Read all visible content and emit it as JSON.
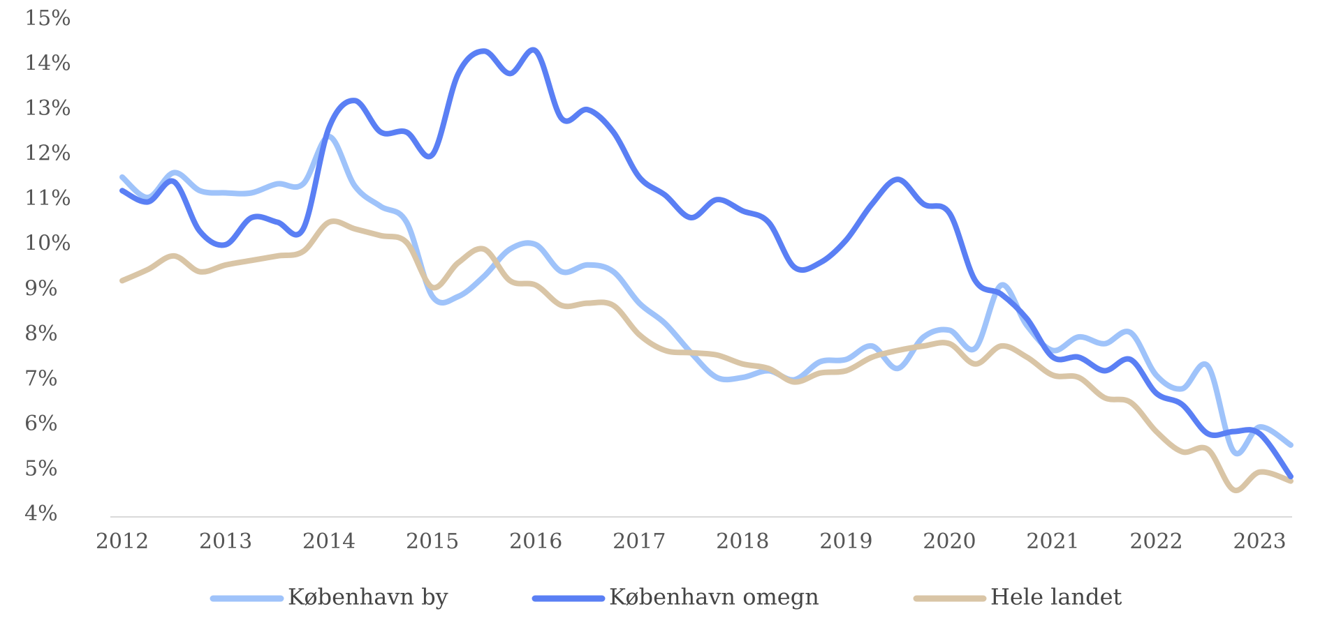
{
  "chart_data": {
    "type": "line",
    "title": "",
    "xlabel": "",
    "ylabel": "",
    "x_tick_labels": [
      "2012",
      "2013",
      "2014",
      "2015",
      "2016",
      "2017",
      "2018",
      "2019",
      "2020",
      "2021",
      "2022",
      "2023"
    ],
    "y_tick_labels": [
      "4%",
      "5%",
      "6%",
      "7%",
      "8%",
      "9%",
      "10%",
      "11%",
      "12%",
      "13%",
      "14%",
      "15%"
    ],
    "xlim": [
      2012,
      2023.3
    ],
    "ylim": [
      4,
      15
    ],
    "y_unit": "%",
    "grid": false,
    "legend_position": "bottom",
    "series": [
      {
        "name": "København by",
        "color": "#9fc3fa",
        "points": [
          [
            2012.0,
            11.5
          ],
          [
            2012.25,
            11.05
          ],
          [
            2012.5,
            11.6
          ],
          [
            2012.75,
            11.2
          ],
          [
            2013.0,
            11.15
          ],
          [
            2013.25,
            11.15
          ],
          [
            2013.5,
            11.35
          ],
          [
            2013.75,
            11.35
          ],
          [
            2014.0,
            12.4
          ],
          [
            2014.25,
            11.3
          ],
          [
            2014.5,
            10.85
          ],
          [
            2014.75,
            10.5
          ],
          [
            2015.0,
            8.85
          ],
          [
            2015.25,
            8.85
          ],
          [
            2015.5,
            9.3
          ],
          [
            2015.75,
            9.9
          ],
          [
            2016.0,
            10.0
          ],
          [
            2016.25,
            9.4
          ],
          [
            2016.5,
            9.55
          ],
          [
            2016.75,
            9.4
          ],
          [
            2017.0,
            8.7
          ],
          [
            2017.25,
            8.25
          ],
          [
            2017.5,
            7.6
          ],
          [
            2017.75,
            7.05
          ],
          [
            2018.0,
            7.05
          ],
          [
            2018.25,
            7.2
          ],
          [
            2018.5,
            7.0
          ],
          [
            2018.75,
            7.4
          ],
          [
            2019.0,
            7.45
          ],
          [
            2019.25,
            7.75
          ],
          [
            2019.5,
            7.25
          ],
          [
            2019.75,
            7.95
          ],
          [
            2020.0,
            8.1
          ],
          [
            2020.25,
            7.7
          ],
          [
            2020.5,
            9.1
          ],
          [
            2020.75,
            8.2
          ],
          [
            2021.0,
            7.65
          ],
          [
            2021.25,
            7.95
          ],
          [
            2021.5,
            7.8
          ],
          [
            2021.75,
            8.05
          ],
          [
            2022.0,
            7.1
          ],
          [
            2022.25,
            6.8
          ],
          [
            2022.5,
            7.3
          ],
          [
            2022.75,
            5.4
          ],
          [
            2023.0,
            5.95
          ],
          [
            2023.3,
            5.55
          ]
        ]
      },
      {
        "name": "København omegn",
        "color": "#5a7ff4",
        "points": [
          [
            2012.0,
            11.2
          ],
          [
            2012.25,
            10.95
          ],
          [
            2012.5,
            11.4
          ],
          [
            2012.75,
            10.3
          ],
          [
            2013.0,
            10.0
          ],
          [
            2013.25,
            10.6
          ],
          [
            2013.5,
            10.5
          ],
          [
            2013.75,
            10.35
          ],
          [
            2014.0,
            12.6
          ],
          [
            2014.25,
            13.2
          ],
          [
            2014.5,
            12.5
          ],
          [
            2014.75,
            12.5
          ],
          [
            2015.0,
            12.0
          ],
          [
            2015.25,
            13.8
          ],
          [
            2015.5,
            14.3
          ],
          [
            2015.75,
            13.8
          ],
          [
            2016.0,
            14.3
          ],
          [
            2016.25,
            12.8
          ],
          [
            2016.5,
            13.0
          ],
          [
            2016.75,
            12.5
          ],
          [
            2017.0,
            11.5
          ],
          [
            2017.25,
            11.1
          ],
          [
            2017.5,
            10.6
          ],
          [
            2017.75,
            11.0
          ],
          [
            2018.0,
            10.75
          ],
          [
            2018.25,
            10.5
          ],
          [
            2018.5,
            9.5
          ],
          [
            2018.75,
            9.6
          ],
          [
            2019.0,
            10.1
          ],
          [
            2019.25,
            10.9
          ],
          [
            2019.5,
            11.45
          ],
          [
            2019.75,
            10.9
          ],
          [
            2020.0,
            10.7
          ],
          [
            2020.25,
            9.2
          ],
          [
            2020.5,
            8.9
          ],
          [
            2020.75,
            8.35
          ],
          [
            2021.0,
            7.5
          ],
          [
            2021.25,
            7.5
          ],
          [
            2021.5,
            7.2
          ],
          [
            2021.75,
            7.45
          ],
          [
            2022.0,
            6.7
          ],
          [
            2022.25,
            6.45
          ],
          [
            2022.5,
            5.8
          ],
          [
            2022.75,
            5.85
          ],
          [
            2023.0,
            5.8
          ],
          [
            2023.3,
            4.85
          ]
        ]
      },
      {
        "name": "Hele landet",
        "color": "#d9c5a6",
        "points": [
          [
            2012.0,
            9.2
          ],
          [
            2012.25,
            9.45
          ],
          [
            2012.5,
            9.75
          ],
          [
            2012.75,
            9.4
          ],
          [
            2013.0,
            9.55
          ],
          [
            2013.25,
            9.65
          ],
          [
            2013.5,
            9.75
          ],
          [
            2013.75,
            9.85
          ],
          [
            2014.0,
            10.5
          ],
          [
            2014.25,
            10.35
          ],
          [
            2014.5,
            10.2
          ],
          [
            2014.75,
            10.05
          ],
          [
            2015.0,
            9.05
          ],
          [
            2015.25,
            9.6
          ],
          [
            2015.5,
            9.9
          ],
          [
            2015.75,
            9.2
          ],
          [
            2016.0,
            9.1
          ],
          [
            2016.25,
            8.65
          ],
          [
            2016.5,
            8.7
          ],
          [
            2016.75,
            8.65
          ],
          [
            2017.0,
            8.0
          ],
          [
            2017.25,
            7.65
          ],
          [
            2017.5,
            7.6
          ],
          [
            2017.75,
            7.55
          ],
          [
            2018.0,
            7.35
          ],
          [
            2018.25,
            7.25
          ],
          [
            2018.5,
            6.95
          ],
          [
            2018.75,
            7.15
          ],
          [
            2019.0,
            7.2
          ],
          [
            2019.25,
            7.5
          ],
          [
            2019.5,
            7.65
          ],
          [
            2019.75,
            7.75
          ],
          [
            2020.0,
            7.8
          ],
          [
            2020.25,
            7.35
          ],
          [
            2020.5,
            7.75
          ],
          [
            2020.75,
            7.5
          ],
          [
            2021.0,
            7.1
          ],
          [
            2021.25,
            7.05
          ],
          [
            2021.5,
            6.6
          ],
          [
            2021.75,
            6.5
          ],
          [
            2022.0,
            5.85
          ],
          [
            2022.25,
            5.4
          ],
          [
            2022.5,
            5.45
          ],
          [
            2022.75,
            4.55
          ],
          [
            2023.0,
            4.95
          ],
          [
            2023.3,
            4.75
          ]
        ]
      }
    ]
  }
}
